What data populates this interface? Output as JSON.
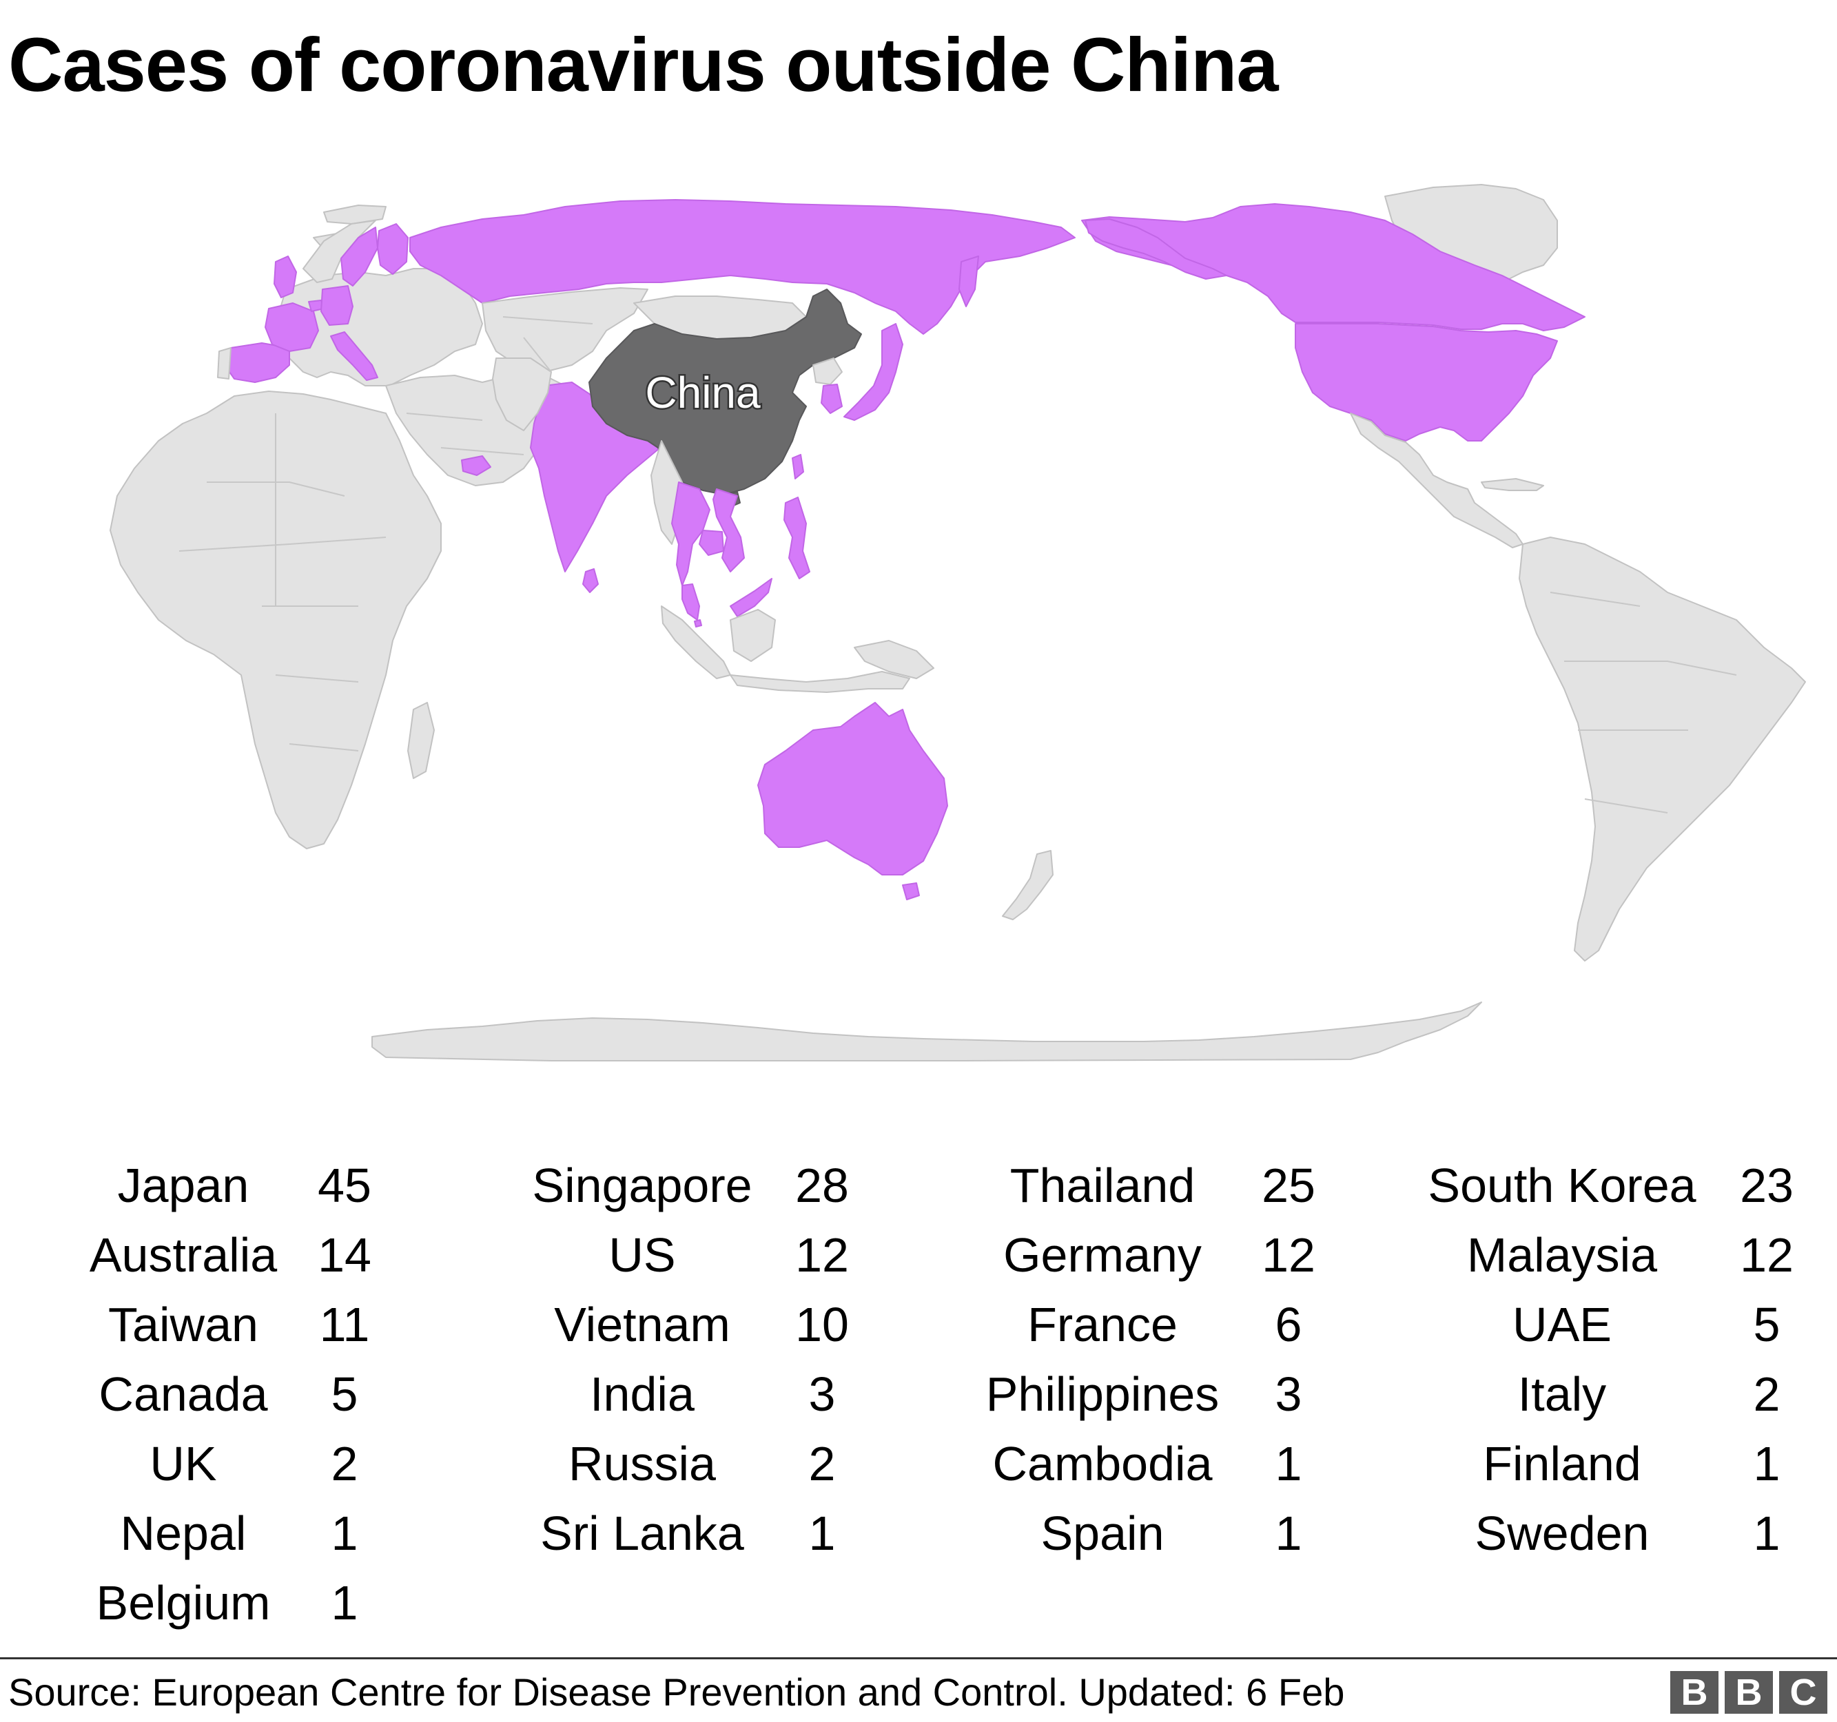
{
  "title": "Cases of coronavirus outside China",
  "map": {
    "label_china": "China",
    "legend_colors": {
      "china": "#6a6a6b",
      "affected": "#d57af9",
      "unaffected": "#e3e3e3"
    },
    "affected_countries": [
      "Japan",
      "Singapore",
      "Thailand",
      "South Korea",
      "Australia",
      "US",
      "Germany",
      "Malaysia",
      "Taiwan",
      "Vietnam",
      "France",
      "UAE",
      "Canada",
      "India",
      "Philippines",
      "Italy",
      "UK",
      "Russia",
      "Cambodia",
      "Finland",
      "Nepal",
      "Sri Lanka",
      "Spain",
      "Sweden",
      "Belgium"
    ]
  },
  "cases": [
    [
      {
        "country": "Japan",
        "count": "45"
      },
      {
        "country": "Australia",
        "count": "14"
      },
      {
        "country": "Taiwan",
        "count": "11"
      },
      {
        "country": "Canada",
        "count": "5"
      },
      {
        "country": "UK",
        "count": "2"
      },
      {
        "country": "Nepal",
        "count": "1"
      },
      {
        "country": "Belgium",
        "count": "1"
      }
    ],
    [
      {
        "country": "Singapore",
        "count": "28"
      },
      {
        "country": "US",
        "count": "12"
      },
      {
        "country": "Vietnam",
        "count": "10"
      },
      {
        "country": "India",
        "count": "3"
      },
      {
        "country": "Russia",
        "count": "2"
      },
      {
        "country": "Sri Lanka",
        "count": "1"
      }
    ],
    [
      {
        "country": "Thailand",
        "count": "25"
      },
      {
        "country": "Germany",
        "count": "12"
      },
      {
        "country": "France",
        "count": "6"
      },
      {
        "country": "Philippines",
        "count": "3"
      },
      {
        "country": "Cambodia",
        "count": "1"
      },
      {
        "country": "Spain",
        "count": "1"
      }
    ],
    [
      {
        "country": "South Korea",
        "count": "23"
      },
      {
        "country": "Malaysia",
        "count": "12"
      },
      {
        "country": "UAE",
        "count": "5"
      },
      {
        "country": "Italy",
        "count": "2"
      },
      {
        "country": "Finland",
        "count": "1"
      },
      {
        "country": "Sweden",
        "count": "1"
      }
    ]
  ],
  "footer": {
    "source": "Source: European Centre for Disease Prevention and Control. Updated: 6 Feb",
    "logo_letters": [
      "B",
      "B",
      "C"
    ]
  }
}
